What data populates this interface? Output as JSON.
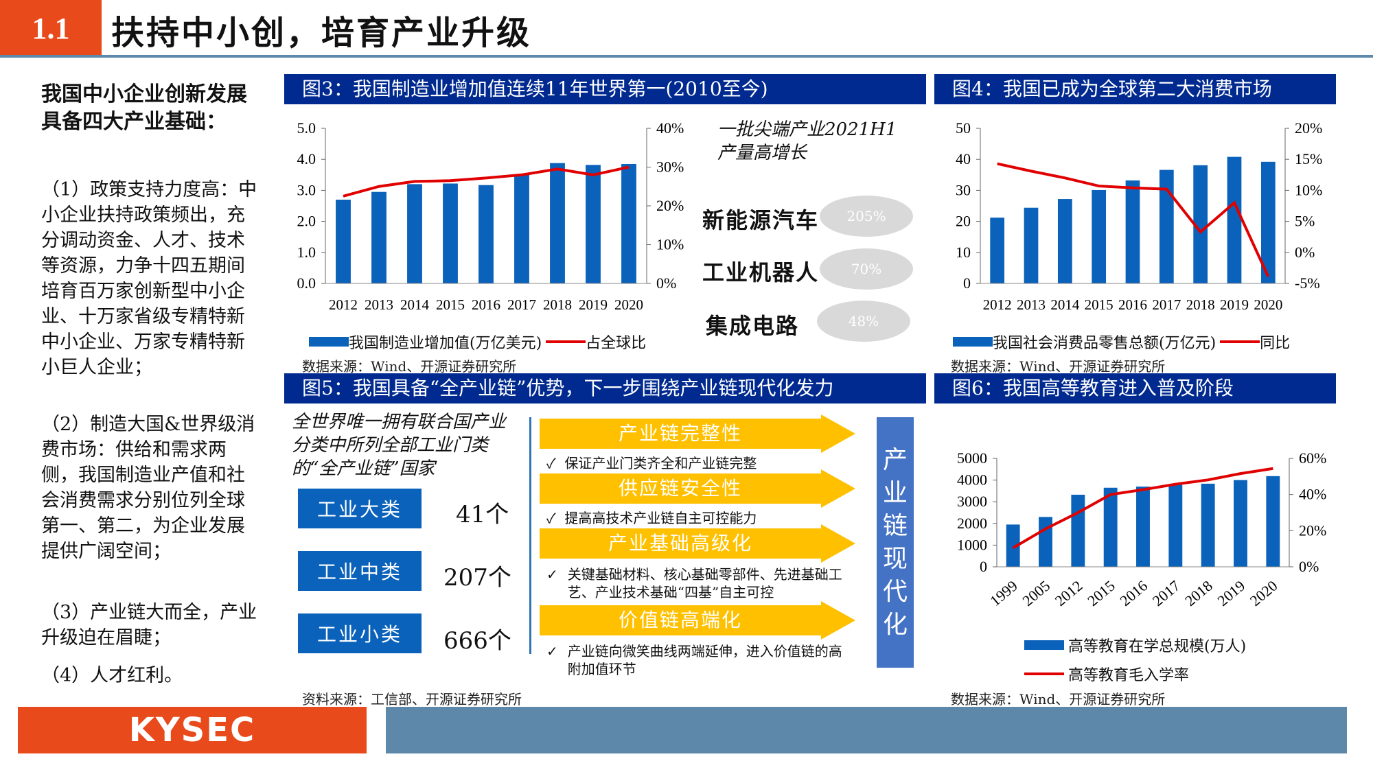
{
  "header": {
    "section": "1.1",
    "title": "扶持中小创，培育产业升级"
  },
  "left": {
    "heading": "我国中小企业创新发展具备四大产业基础：",
    "points": [
      "（1）政策支持力度高：中小企业扶持政策频出，充分调动资金、人才、技术等资源，力争十四五期间培育百万家创新型中小企业、十万家省级专精特新中小企业、万家专精特新小巨人企业；",
      "（2）制造大国&世界级消费市场：供给和需求两侧，我国制造业产值和社会消费需求分别位列全球第一、第二，为企业发展提供广阔空间；",
      "（3）产业链大而全，产业升级迫在眉睫；",
      "（4）人才红利。"
    ]
  },
  "fig3": {
    "title": "图3：我国制造业增加值连续11年世界第一(2010至今)",
    "legend_bar": "我国制造业增加值(万亿美元)",
    "legend_line": "占全球比",
    "source": "数据来源：Wind、开源证券研究所",
    "note": "一批尖端产业2021H1产量高增长",
    "industries": [
      {
        "name": "新能源汽车",
        "growth": "205%"
      },
      {
        "name": "工业机器人",
        "growth": "70%"
      },
      {
        "name": "集成电路",
        "growth": "48%"
      }
    ]
  },
  "fig4": {
    "title": "图4：我国已成为全球第二大消费市场",
    "legend_bar": "我国社会消费品零售总额(万亿元)",
    "legend_line": "同比",
    "source": "数据来源：Wind、开源证券研究所"
  },
  "fig5": {
    "title": "图5：我国具备“全产业链”优势，下一步围绕产业链现代化发力",
    "intro": "全世界唯一拥有联合国产业分类中所列全部工业门类的“全产业链”国家",
    "categories": [
      {
        "label": "工业大类",
        "count": "41个"
      },
      {
        "label": "工业中类",
        "count": "207个"
      },
      {
        "label": "工业小类",
        "count": "666个"
      }
    ],
    "arrows": [
      {
        "label": "产业链完整性",
        "desc": "保证产业门类齐全和产业链完整"
      },
      {
        "label": "供应链安全性",
        "desc": "提高高技术产业链自主可控能力"
      },
      {
        "label": "产业基础高级化",
        "desc": "关键基础材料、核心基础零部件、先进基础工艺、产业技术基础“四基”自主可控"
      },
      {
        "label": "价值链高端化",
        "desc": "产业链向微笑曲线两端延伸，进入价值链的高附加值环节"
      }
    ],
    "vertical": "产业链现代化",
    "source": "资料来源：工信部、开源证券研究所",
    "check_mark": "✓"
  },
  "fig6": {
    "title": "图6：我国高等教育进入普及阶段",
    "legend_bar": "高等教育在学总规模(万人)",
    "legend_line": "高等教育毛入学率",
    "source": "数据来源：Wind、开源证券研究所"
  },
  "footer": {
    "logo": "KYSEC"
  },
  "colors": {
    "accent": "#e84a1b",
    "navy": "#002a8f",
    "bar": "#0a62bb",
    "line": "#e00000",
    "arrow": "#ffc000"
  },
  "chart_data": [
    {
      "id": "fig3",
      "type": "bar",
      "categories": [
        "2012",
        "2013",
        "2014",
        "2015",
        "2016",
        "2017",
        "2018",
        "2019",
        "2020"
      ],
      "series": [
        {
          "name": "我国制造业增加值(万亿美元)",
          "type": "bar",
          "axis": "left",
          "values": [
            2.7,
            2.95,
            3.2,
            3.22,
            3.17,
            3.5,
            3.88,
            3.82,
            3.85
          ]
        },
        {
          "name": "占全球比",
          "type": "line",
          "axis": "right",
          "values": [
            22.5,
            25,
            26.3,
            26.5,
            27.2,
            28,
            29.5,
            28,
            30
          ]
        }
      ],
      "ylim": [
        0,
        5
      ],
      "yticks": [
        "0.0",
        "1.0",
        "2.0",
        "3.0",
        "4.0",
        "5.0"
      ],
      "y2lim": [
        0,
        40
      ],
      "y2ticks": [
        "0%",
        "10%",
        "20%",
        "30%",
        "40%"
      ]
    },
    {
      "id": "fig4",
      "type": "bar",
      "categories": [
        "2012",
        "2013",
        "2014",
        "2015",
        "2016",
        "2017",
        "2018",
        "2019",
        "2020"
      ],
      "series": [
        {
          "name": "我国社会消费品零售总额(万亿元)",
          "type": "bar",
          "axis": "left",
          "values": [
            21.2,
            24.4,
            27.2,
            30.1,
            33.2,
            36.6,
            38.1,
            40.8,
            39.2
          ]
        },
        {
          "name": "同比",
          "type": "line",
          "axis": "right",
          "values": [
            14.3,
            13.1,
            12,
            10.7,
            10.4,
            10.2,
            3.3,
            8,
            -3.9
          ]
        }
      ],
      "ylim": [
        0,
        50
      ],
      "yticks": [
        "0",
        "10",
        "20",
        "30",
        "40",
        "50"
      ],
      "y2lim": [
        -5,
        20
      ],
      "y2ticks": [
        "-5%",
        "0%",
        "5%",
        "10%",
        "15%",
        "20%"
      ]
    },
    {
      "id": "fig6",
      "type": "bar",
      "categories": [
        "1999",
        "2005",
        "2012",
        "2015",
        "2016",
        "2017",
        "2018",
        "2019",
        "2020"
      ],
      "series": [
        {
          "name": "高等教育在学总规模(万人)",
          "type": "bar",
          "axis": "left",
          "values": [
            1950,
            2300,
            3325,
            3647,
            3699,
            3779,
            3833,
            4002,
            4183
          ]
        },
        {
          "name": "高等教育毛入学率",
          "type": "line",
          "axis": "right",
          "values": [
            10.5,
            21,
            30,
            40,
            42.7,
            45.7,
            48.1,
            51.6,
            54.4
          ]
        }
      ],
      "ylim": [
        0,
        5000
      ],
      "yticks": [
        "0",
        "1000",
        "2000",
        "3000",
        "4000",
        "5000"
      ],
      "y2lim": [
        0,
        60
      ],
      "y2ticks": [
        "0%",
        "20%",
        "40%",
        "60%"
      ]
    }
  ]
}
